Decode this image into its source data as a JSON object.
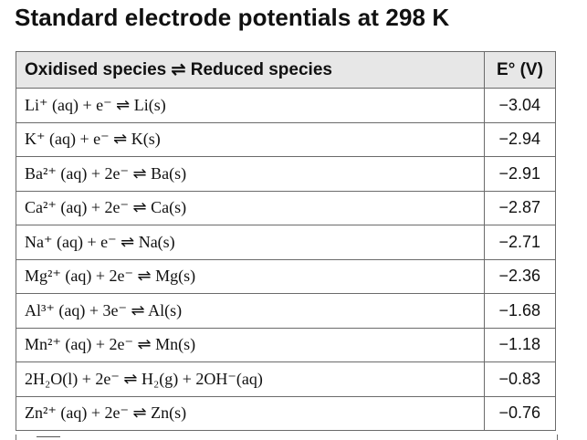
{
  "title": "Standard electrode potentials at 298 K",
  "table": {
    "headers": {
      "reaction": "Oxidised species ⇌ Reduced species",
      "potential": "E° (V)"
    },
    "rows": [
      {
        "reaction": "Li⁺ (aq) + e⁻ ⇌ Li(s)",
        "value": "−3.04"
      },
      {
        "reaction": "K⁺ (aq) + e⁻ ⇌ K(s)",
        "value": "−2.94"
      },
      {
        "reaction": "Ba²⁺ (aq) + 2e⁻ ⇌ Ba(s)",
        "value": "−2.91"
      },
      {
        "reaction": "Ca²⁺ (aq) + 2e⁻ ⇌ Ca(s)",
        "value": "−2.87"
      },
      {
        "reaction": "Na⁺ (aq) + e⁻ ⇌ Na(s)",
        "value": "−2.71"
      },
      {
        "reaction": "Mg²⁺ (aq) + 2e⁻ ⇌ Mg(s)",
        "value": "−2.36"
      },
      {
        "reaction": "Al³⁺ (aq) + 3e⁻ ⇌ Al(s)",
        "value": "−1.68"
      },
      {
        "reaction": "Mn²⁺ (aq) + 2e⁻ ⇌ Mn(s)",
        "value": "−1.18"
      },
      {
        "reaction": "2H₂O(l) + 2e⁻ ⇌ H₂(g) + 2OH⁻(aq)",
        "value": "−0.83"
      },
      {
        "reaction": "Zn²⁺ (aq) + 2e⁻ ⇌ Zn(s)",
        "value": "−0.76"
      }
    ]
  }
}
